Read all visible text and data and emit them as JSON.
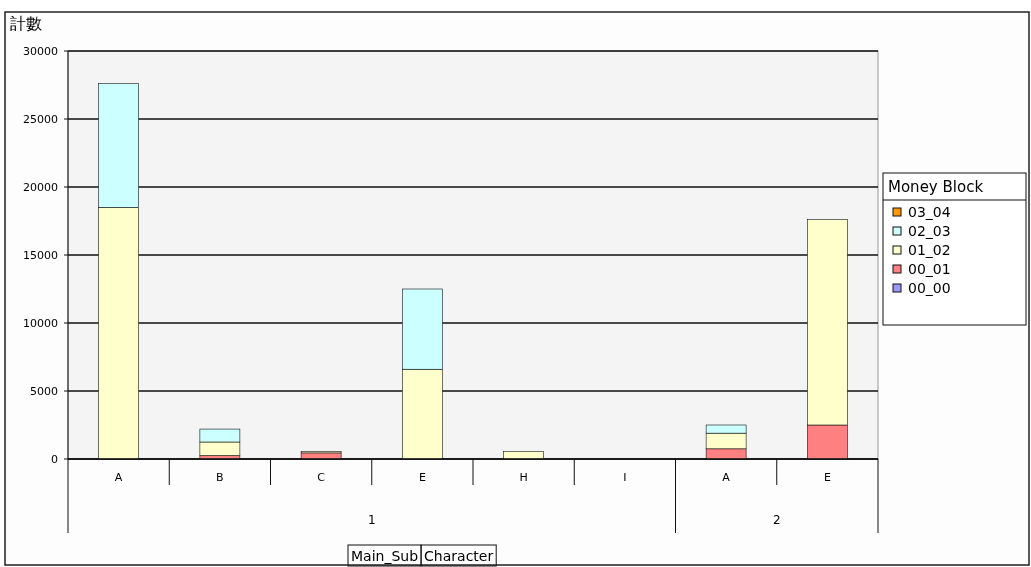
{
  "chart_data": {
    "type": "bar",
    "stacked": true,
    "ylabel": "計數",
    "legend_title": "Money Block",
    "legend": "right",
    "grid": "y",
    "categories": [
      "A",
      "B",
      "C",
      "E",
      "H",
      "I",
      "A",
      "E"
    ],
    "ylim": [
      0,
      30000
    ],
    "yticks": [
      0,
      5000,
      10000,
      15000,
      20000,
      25000,
      30000
    ],
    "series": [
      {
        "name": "00_00",
        "color": "#9999ff",
        "values": [
          0,
          0,
          0,
          0,
          0,
          0,
          null,
          0
        ]
      },
      {
        "name": "00_01",
        "color": "#ff8080",
        "values": [
          0,
          250,
          450,
          0,
          0,
          0,
          750,
          2500
        ]
      },
      {
        "name": "01_02",
        "color": "#ffffcc",
        "values": [
          18500,
          1000,
          100,
          6600,
          550,
          0,
          1150,
          15100
        ]
      },
      {
        "name": "02_03",
        "color": "#ccffff",
        "values": [
          9100,
          950,
          0,
          5900,
          0,
          0,
          600,
          0
        ]
      },
      {
        "name": "03_04",
        "color": "#ff9900",
        "values": [
          0,
          0,
          0,
          0,
          0,
          0,
          0,
          0
        ]
      }
    ],
    "annotations": [
      "1",
      "2",
      "Main_Sub",
      "Character"
    ]
  }
}
